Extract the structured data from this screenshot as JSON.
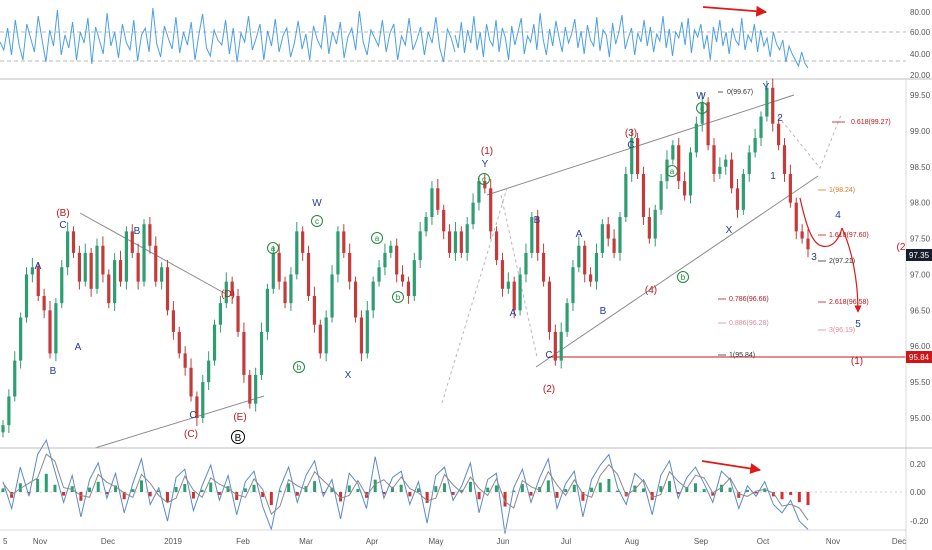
{
  "colors": {
    "rsi_line": "#4a9fe8",
    "up_candle": "#2e9d72",
    "down_candle": "#c43b3b",
    "wave_red": "#c0161b",
    "wave_blue": "#223c9e",
    "wave_green": "#1f8a3a",
    "trendline": "#8a8a8a",
    "arrow_red": "#e01818",
    "price_tag": "#1a1e2c",
    "level_tag": "#d01418",
    "osc_line": "#5b8ac8",
    "osc_hist_pos": "#2e9d72",
    "osc_hist_neg": "#d03030"
  },
  "chart_data": [
    {
      "type": "line",
      "name": "rsi_pane",
      "y_ticks": [
        "80.00",
        "60.00",
        "40.00",
        "20.00"
      ],
      "ylim": [
        14,
        88
      ],
      "reference_levels": [
        70,
        30
      ],
      "series": [
        {
          "values": [
            48,
            40,
            62,
            35,
            70,
            45,
            30,
            66,
            52,
            38,
            74,
            50,
            28,
            60,
            44,
            80,
            35,
            55,
            42,
            68,
            30,
            58,
            47,
            72,
            26,
            63,
            50,
            36,
            77,
            44,
            58,
            32,
            66,
            48,
            40,
            70,
            29,
            55,
            62,
            38,
            82,
            46,
            33,
            64,
            52,
            41,
            73,
            37,
            58,
            45,
            68,
            30,
            55,
            76,
            42,
            34,
            60,
            50,
            45,
            70,
            36,
            62,
            28,
            57,
            48,
            74,
            40,
            52,
            66,
            30,
            59,
            44,
            71,
            38,
            54,
            62,
            33,
            47,
            69,
            41,
            56,
            30,
            64,
            50,
            42,
            75,
            36,
            58,
            46,
            68,
            32,
            53,
            62,
            40,
            79,
            48,
            35,
            60,
            52,
            44,
            70,
            38,
            57,
            66,
            30,
            54,
            45,
            72,
            40,
            50,
            63,
            35,
            58,
            47,
            73,
            42,
            28,
            61,
            52,
            38
          ]
        },
        {
          "values": [
            55,
            42,
            68,
            37,
            60,
            47,
            74,
            40,
            58,
            33,
            66,
            50,
            44,
            70,
            38,
            62,
            52,
            30,
            64,
            45,
            58,
            72,
            36,
            54,
            48,
            66,
            40,
            77,
            50,
            35,
            61,
            44,
            69,
            53,
            38,
            63,
            47,
            56,
            71,
            42,
            59,
            36,
            65,
            50,
            44,
            73,
            39,
            60,
            55,
            33,
            67,
            46,
            58,
            75,
            41,
            52,
            62,
            35,
            57,
            48,
            70,
            44,
            63,
            38,
            56,
            49,
            74,
            42,
            61,
            34,
            58,
            52,
            68,
            45,
            72,
            37,
            60,
            53,
            66,
            41,
            55,
            30,
            63,
            48,
            70,
            44,
            58,
            36,
            62,
            50,
            45,
            72,
            40,
            55,
            48,
            66,
            38,
            60,
            44,
            52,
            33,
            58,
            46,
            40,
            50,
            28,
            44,
            36,
            30,
            24,
            38,
            27,
            22
          ]
        }
      ]
    },
    {
      "type": "candlestick",
      "name": "price_pane",
      "x_ticks": [
        "5",
        "Nov",
        "Dec",
        "2019",
        "Feb",
        "Mar",
        "Apr",
        "May",
        "Jun",
        "Jul",
        "Aug",
        "Sep",
        "Oct",
        "Nov",
        "Dec"
      ],
      "y_ticks": [
        "99.50",
        "99.00",
        "98.50",
        "98.00",
        "97.50",
        "97.00",
        "96.50",
        "96.00",
        "95.50",
        "95.00"
      ],
      "ylim": [
        94.62,
        99.98
      ],
      "last_price": "97.35",
      "level_label": "95.84",
      "closes": [
        94.9,
        95.3,
        95.8,
        96.4,
        97.0,
        97.1,
        96.7,
        96.5,
        95.9,
        96.6,
        97.1,
        97.6,
        97.3,
        96.9,
        97.3,
        96.8,
        97.4,
        97.0,
        96.6,
        97.2,
        96.9,
        97.6,
        97.3,
        96.9,
        97.7,
        97.4,
        96.9,
        97.1,
        96.5,
        96.2,
        95.9,
        95.7,
        95.3,
        95.0,
        95.5,
        95.8,
        96.3,
        96.6,
        96.9,
        96.7,
        96.2,
        95.6,
        95.2,
        95.6,
        96.2,
        96.8,
        97.3,
        96.9,
        96.6,
        97.0,
        97.6,
        97.3,
        96.7,
        96.3,
        95.9,
        96.4,
        97.0,
        97.6,
        97.3,
        96.9,
        96.4,
        95.9,
        96.5,
        96.9,
        97.1,
        97.3,
        97.4,
        97.0,
        96.9,
        96.7,
        97.2,
        97.6,
        97.8,
        98.2,
        97.9,
        97.6,
        97.3,
        97.6,
        97.3,
        97.7,
        98.0,
        98.3,
        98.2,
        97.6,
        97.2,
        96.8,
        96.9,
        96.5,
        97.0,
        97.3,
        97.8,
        97.3,
        96.9,
        96.2,
        95.8,
        96.2,
        96.6,
        97.1,
        97.4,
        97.0,
        96.9,
        97.3,
        97.7,
        97.5,
        97.3,
        97.8,
        98.4,
        98.9,
        98.4,
        97.8,
        97.5,
        97.9,
        98.3,
        98.6,
        98.8,
        98.3,
        98.1,
        98.7,
        99.1,
        99.4,
        98.8,
        98.4,
        98.5,
        98.6,
        98.2,
        97.9,
        98.4,
        98.7,
        98.9,
        99.2,
        99.6,
        99.1,
        98.8,
        98.4,
        98.0,
        97.6,
        97.5,
        97.35
      ],
      "wave_labels": [
        {
          "text": "(B)",
          "color": "red"
        },
        {
          "text": "C",
          "color": "blue"
        },
        {
          "text": "A",
          "color": "blue"
        },
        {
          "text": "B",
          "color": "blue"
        },
        {
          "text": "A",
          "color": "blue"
        },
        {
          "text": "B",
          "color": "blue"
        },
        {
          "text": "(D)",
          "color": "red"
        },
        {
          "text": "C",
          "color": "blue"
        },
        {
          "text": "(C)",
          "color": "red"
        },
        {
          "text": "(E)",
          "color": "red"
        },
        {
          "text": "B",
          "color": "black"
        },
        {
          "text": "a",
          "color": "green"
        },
        {
          "text": "W",
          "color": "blue"
        },
        {
          "text": "c",
          "color": "green"
        },
        {
          "text": "b",
          "color": "green"
        },
        {
          "text": "X",
          "color": "blue"
        },
        {
          "text": "a",
          "color": "green"
        },
        {
          "text": "b",
          "color": "green"
        },
        {
          "text": "(1)",
          "color": "red"
        },
        {
          "text": "Y",
          "color": "blue"
        },
        {
          "text": "c",
          "color": "green"
        },
        {
          "text": "B",
          "color": "blue"
        },
        {
          "text": "A",
          "color": "blue"
        },
        {
          "text": "C",
          "color": "blue"
        },
        {
          "text": "(2)",
          "color": "red"
        },
        {
          "text": "A",
          "color": "blue"
        },
        {
          "text": "B",
          "color": "blue"
        },
        {
          "text": "(3)",
          "color": "red"
        },
        {
          "text": "C",
          "color": "blue"
        },
        {
          "text": "(4)",
          "color": "red"
        },
        {
          "text": "a",
          "color": "green"
        },
        {
          "text": "b",
          "color": "green"
        },
        {
          "text": "W",
          "color": "blue"
        },
        {
          "text": "c",
          "color": "green"
        },
        {
          "text": "X",
          "color": "blue"
        },
        {
          "text": "Y",
          "color": "blue"
        },
        {
          "text": "2",
          "color": "blue"
        },
        {
          "text": "1",
          "color": "blue"
        },
        {
          "text": "4",
          "color": "blue"
        },
        {
          "text": "3",
          "color": "blue"
        },
        {
          "text": "5",
          "color": "blue"
        },
        {
          "text": "(1)",
          "color": "red"
        },
        {
          "text": "(2",
          "color": "red"
        }
      ],
      "fib_levels": [
        {
          "text": "0(99.67)",
          "color": "dark"
        },
        {
          "text": "0.618(99.27)",
          "color": "red"
        },
        {
          "text": "1(98.24)",
          "color": "orange"
        },
        {
          "text": "1.618(97.60)",
          "color": "red"
        },
        {
          "text": "2(97.21)",
          "color": "dark"
        },
        {
          "text": "0.786(96.66)",
          "color": "red"
        },
        {
          "text": "2.618(96.58)",
          "color": "red"
        },
        {
          "text": "0.886(96.28)",
          "color": "pink"
        },
        {
          "text": "3(96.19)",
          "color": "pink"
        },
        {
          "text": "1(95.84)",
          "color": "dark"
        }
      ]
    },
    {
      "type": "line",
      "name": "oscillator_pane",
      "y_ticks": [
        "0.20",
        "0.00",
        "-0.20"
      ],
      "ylim": [
        -0.265,
        0.265
      ],
      "series": [
        {
          "values": [
            0.05,
            -0.08,
            0.12,
            -0.02,
            0.18,
            0.25,
            0.1,
            -0.05,
            0.08,
            -0.12,
            0.06,
            0.14,
            -0.03,
            0.09,
            -0.1,
            0.04,
            0.16,
            -0.06,
            0.02,
            -0.14,
            0.07,
            0.11,
            -0.09,
            0.03,
            0.13,
            -0.04,
            0.08,
            -0.11,
            0.05,
            0.1,
            -0.07,
            -0.18,
            0.02,
            0.12,
            -0.05,
            0.08,
            0.15,
            -0.02,
            0.06,
            -0.13,
            0.09,
            0.04,
            -0.08,
            0.17,
            -0.03,
            0.07,
            0.1,
            -0.06,
            0.05,
            -0.15,
            0.08,
            0.12,
            -0.04,
            0.03,
            0.14,
            -0.1,
            0.06,
            0.09,
            -0.2,
            0.02,
            0.11,
            -0.05,
            0.07,
            0.16,
            -0.08,
            0.04,
            0.1,
            -0.12,
            0.06,
            0.13,
            0.18,
            0.02,
            -0.06,
            0.09,
            0.05,
            -0.11,
            0.08,
            0.15,
            -0.03,
            0.07,
            0.12,
            0.04,
            -0.05,
            0.1,
            0.06,
            -0.08,
            0.03,
            -0.02,
            0.05,
            -0.06,
            -0.1,
            -0.04,
            -0.14,
            -0.18
          ]
        }
      ]
    }
  ]
}
